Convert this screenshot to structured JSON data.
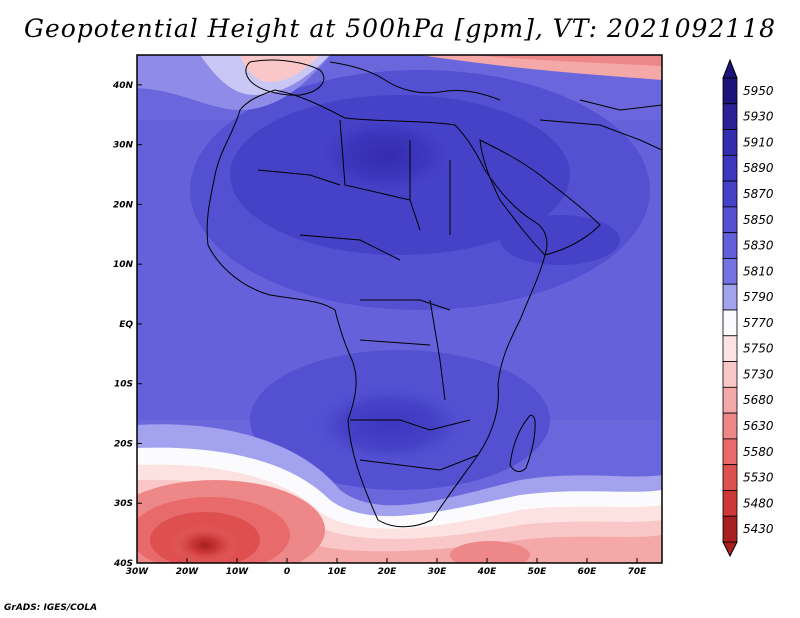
{
  "title": "Geopotential Height at 500hPa [gpm], VT: 2021092118",
  "credit": "GrADS: IGES/COLA",
  "map": {
    "lon_range": [
      -30,
      75
    ],
    "lat_range": [
      -40,
      45
    ],
    "lon_ticks": [
      {
        "lon": -30,
        "label": "30W"
      },
      {
        "lon": -20,
        "label": "20W"
      },
      {
        "lon": -10,
        "label": "10W"
      },
      {
        "lon": 0,
        "label": "0"
      },
      {
        "lon": 10,
        "label": "10E"
      },
      {
        "lon": 20,
        "label": "20E"
      },
      {
        "lon": 30,
        "label": "30E"
      },
      {
        "lon": 40,
        "label": "40E"
      },
      {
        "lon": 50,
        "label": "50E"
      },
      {
        "lon": 60,
        "label": "60E"
      },
      {
        "lon": 70,
        "label": "70E"
      }
    ],
    "lat_ticks": [
      {
        "lat": 40,
        "label": "40N"
      },
      {
        "lat": 30,
        "label": "30N"
      },
      {
        "lat": 20,
        "label": "20N"
      },
      {
        "lat": 10,
        "label": "10N"
      },
      {
        "lat": 0,
        "label": "EQ"
      },
      {
        "lat": -10,
        "label": "10S"
      },
      {
        "lat": -20,
        "label": "20S"
      },
      {
        "lat": -30,
        "label": "30S"
      },
      {
        "lat": -40,
        "label": "40S"
      }
    ]
  },
  "colorbar": {
    "levels": [
      {
        "value": "5950",
        "color": "#1c1478"
      },
      {
        "value": "5930",
        "color": "#2a2296"
      },
      {
        "value": "5910",
        "color": "#342cae"
      },
      {
        "value": "5890",
        "color": "#3c37be"
      },
      {
        "value": "5870",
        "color": "#4642c8"
      },
      {
        "value": "5850",
        "color": "#5350d2"
      },
      {
        "value": "5830",
        "color": "#625fda"
      },
      {
        "value": "5810",
        "color": "#7572e2"
      },
      {
        "value": "5790",
        "color": "#a3a2ee"
      },
      {
        "value": "5770",
        "color": "#fbfbfd"
      },
      {
        "value": "5750",
        "color": "#fde2e2"
      },
      {
        "value": "5730",
        "color": "#f9c7c7"
      },
      {
        "value": "5680",
        "color": "#f4a8a8"
      },
      {
        "value": "5630",
        "color": "#ee8888"
      },
      {
        "value": "5580",
        "color": "#e86a6a"
      },
      {
        "value": "5530",
        "color": "#de5050"
      },
      {
        "value": "5480",
        "color": "#cc3838"
      },
      {
        "value": "5430",
        "color": "#a81f1f"
      }
    ]
  }
}
